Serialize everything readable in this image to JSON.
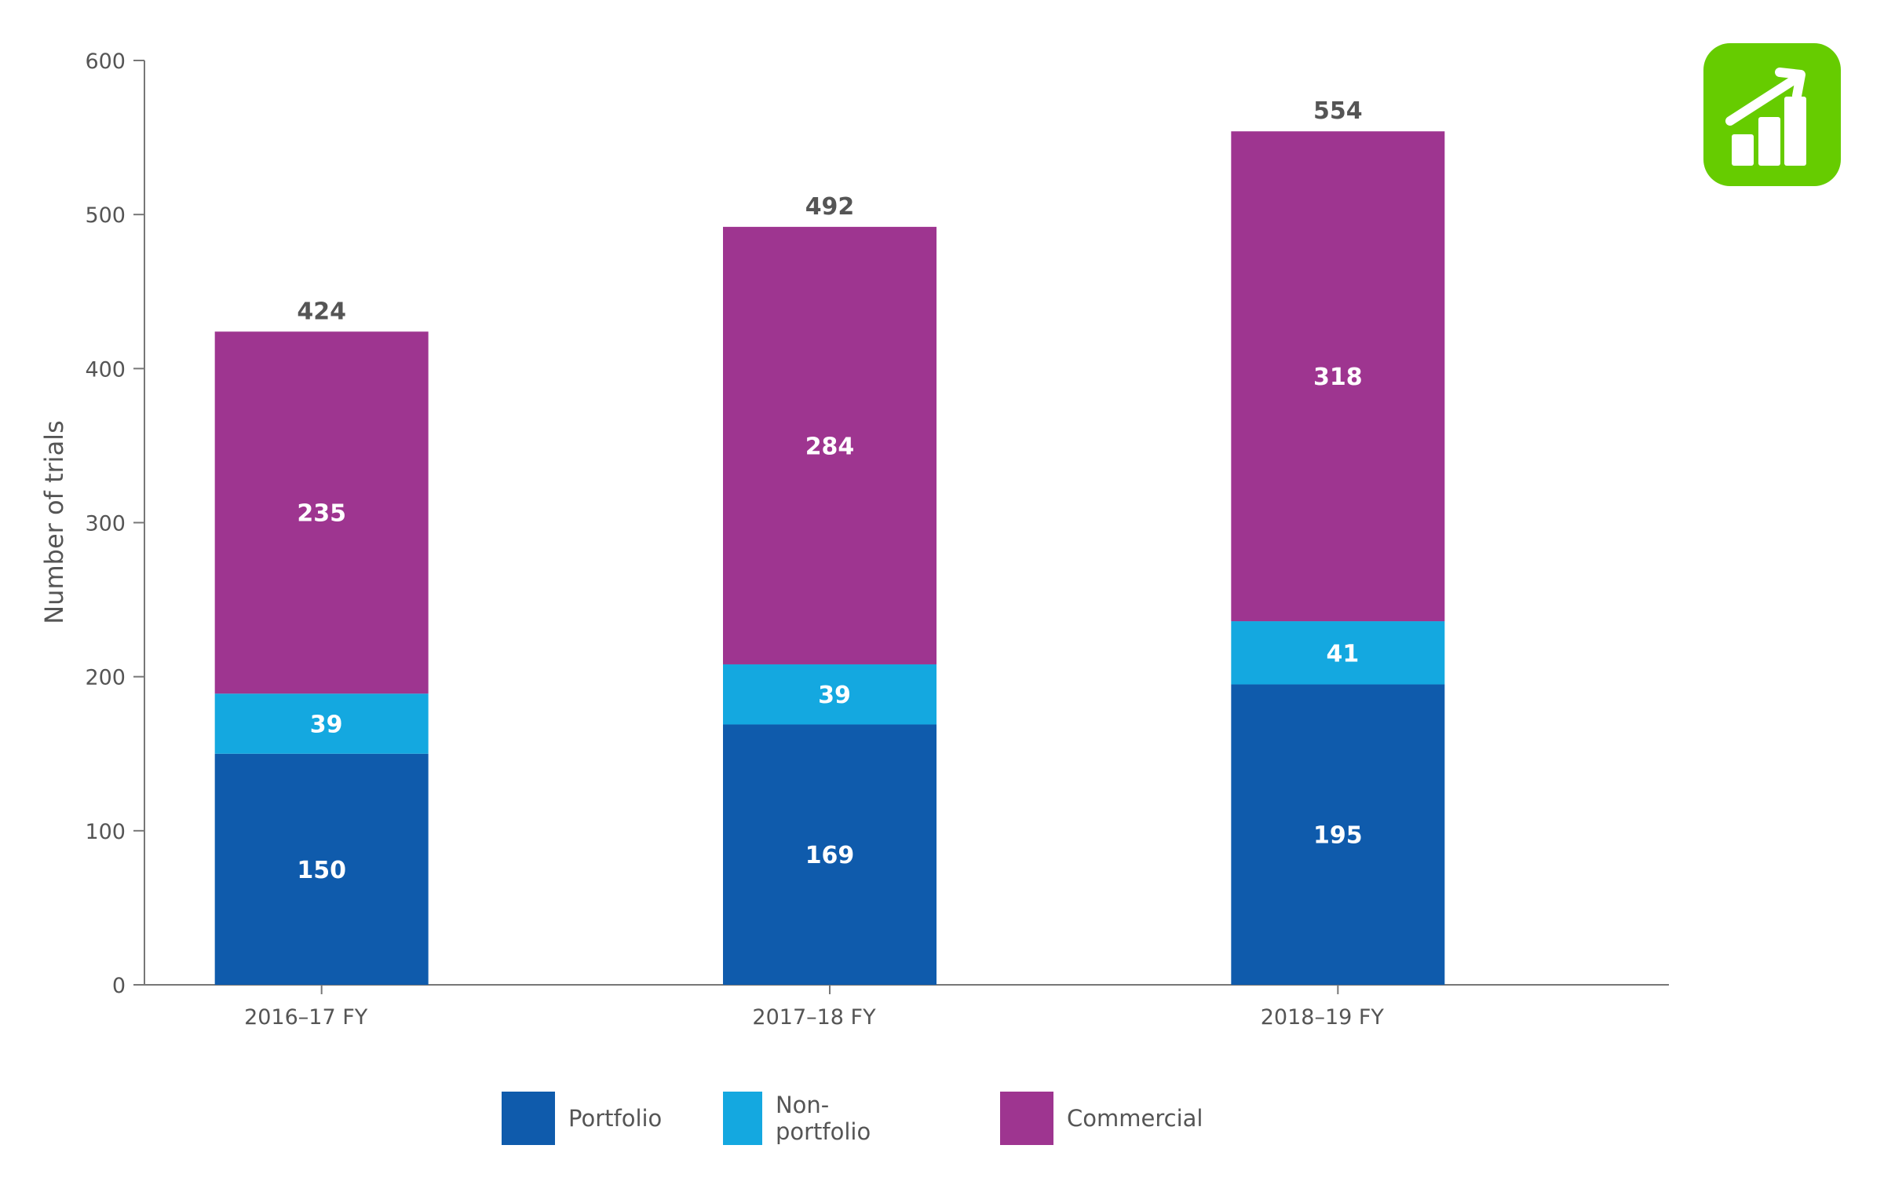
{
  "chart_data": {
    "type": "bar",
    "stacked": true,
    "categories": [
      "2016–17 FY",
      "2017–18 FY",
      "2018–19 FY"
    ],
    "series": [
      {
        "name": "Portfolio",
        "values": [
          150,
          169,
          195
        ],
        "color": "#0F5BAC"
      },
      {
        "name": "Non-portfolio",
        "values": [
          39,
          39,
          41
        ],
        "color": "#14A8E0"
      },
      {
        "name": "Commercial",
        "values": [
          235,
          284,
          318
        ],
        "color": "#9E3590"
      }
    ],
    "totals": [
      424,
      492,
      554
    ],
    "ylabel": "Number of trials",
    "xlabel": "",
    "ylim": [
      0,
      600
    ],
    "yticks": [
      0,
      100,
      200,
      300,
      400,
      500,
      600
    ],
    "grid": false,
    "legend": "bottom"
  },
  "icon": {
    "name": "growth-chart-icon",
    "color": "#66CC00"
  }
}
